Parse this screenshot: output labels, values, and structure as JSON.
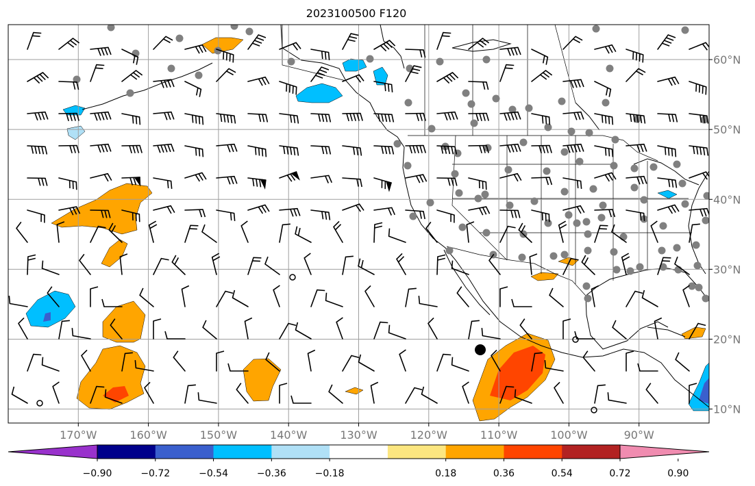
{
  "title": "2023100500 F120",
  "map": {
    "lon_range": [
      -180,
      -80
    ],
    "lat_range": [
      8,
      65
    ],
    "lon_ticks": [
      {
        "value": -170,
        "label": "170°W"
      },
      {
        "value": -160,
        "label": "160°W"
      },
      {
        "value": -150,
        "label": "150°W"
      },
      {
        "value": -140,
        "label": "140°W"
      },
      {
        "value": -130,
        "label": "130°W"
      },
      {
        "value": -120,
        "label": "120°W"
      },
      {
        "value": -110,
        "label": "110°W"
      },
      {
        "value": -100,
        "label": "100°W"
      },
      {
        "value": -90,
        "label": "90°W"
      }
    ],
    "lat_ticks": [
      {
        "value": 10,
        "label": "10°N"
      },
      {
        "value": 20,
        "label": "20°N"
      },
      {
        "value": 30,
        "label": "30°N"
      },
      {
        "value": 40,
        "label": "40°N"
      },
      {
        "value": 50,
        "label": "50°N"
      },
      {
        "value": 60,
        "label": "60°N"
      }
    ],
    "grid_lines": true
  },
  "colorbar": {
    "tick_labels": [
      "−0.90",
      "−0.72",
      "−0.54",
      "−0.36",
      "−0.18",
      "0.18",
      "0.36",
      "0.54",
      "0.72",
      "0.90"
    ],
    "colors": [
      "#9932cc",
      "#00008b",
      "#3a5fcd",
      "#00bfff",
      "#b0e0f6",
      "#ffffff",
      "#fce680",
      "#ffa500",
      "#ff4500",
      "#b22222",
      "#f08cb0"
    ],
    "extend": "both"
  },
  "shading_colors": {
    "pos1": "#ffa500",
    "pos2": "#ff4500",
    "neg1": "#00bfff",
    "neg2": "#3a5fcd"
  },
  "station_color": "#808080"
}
